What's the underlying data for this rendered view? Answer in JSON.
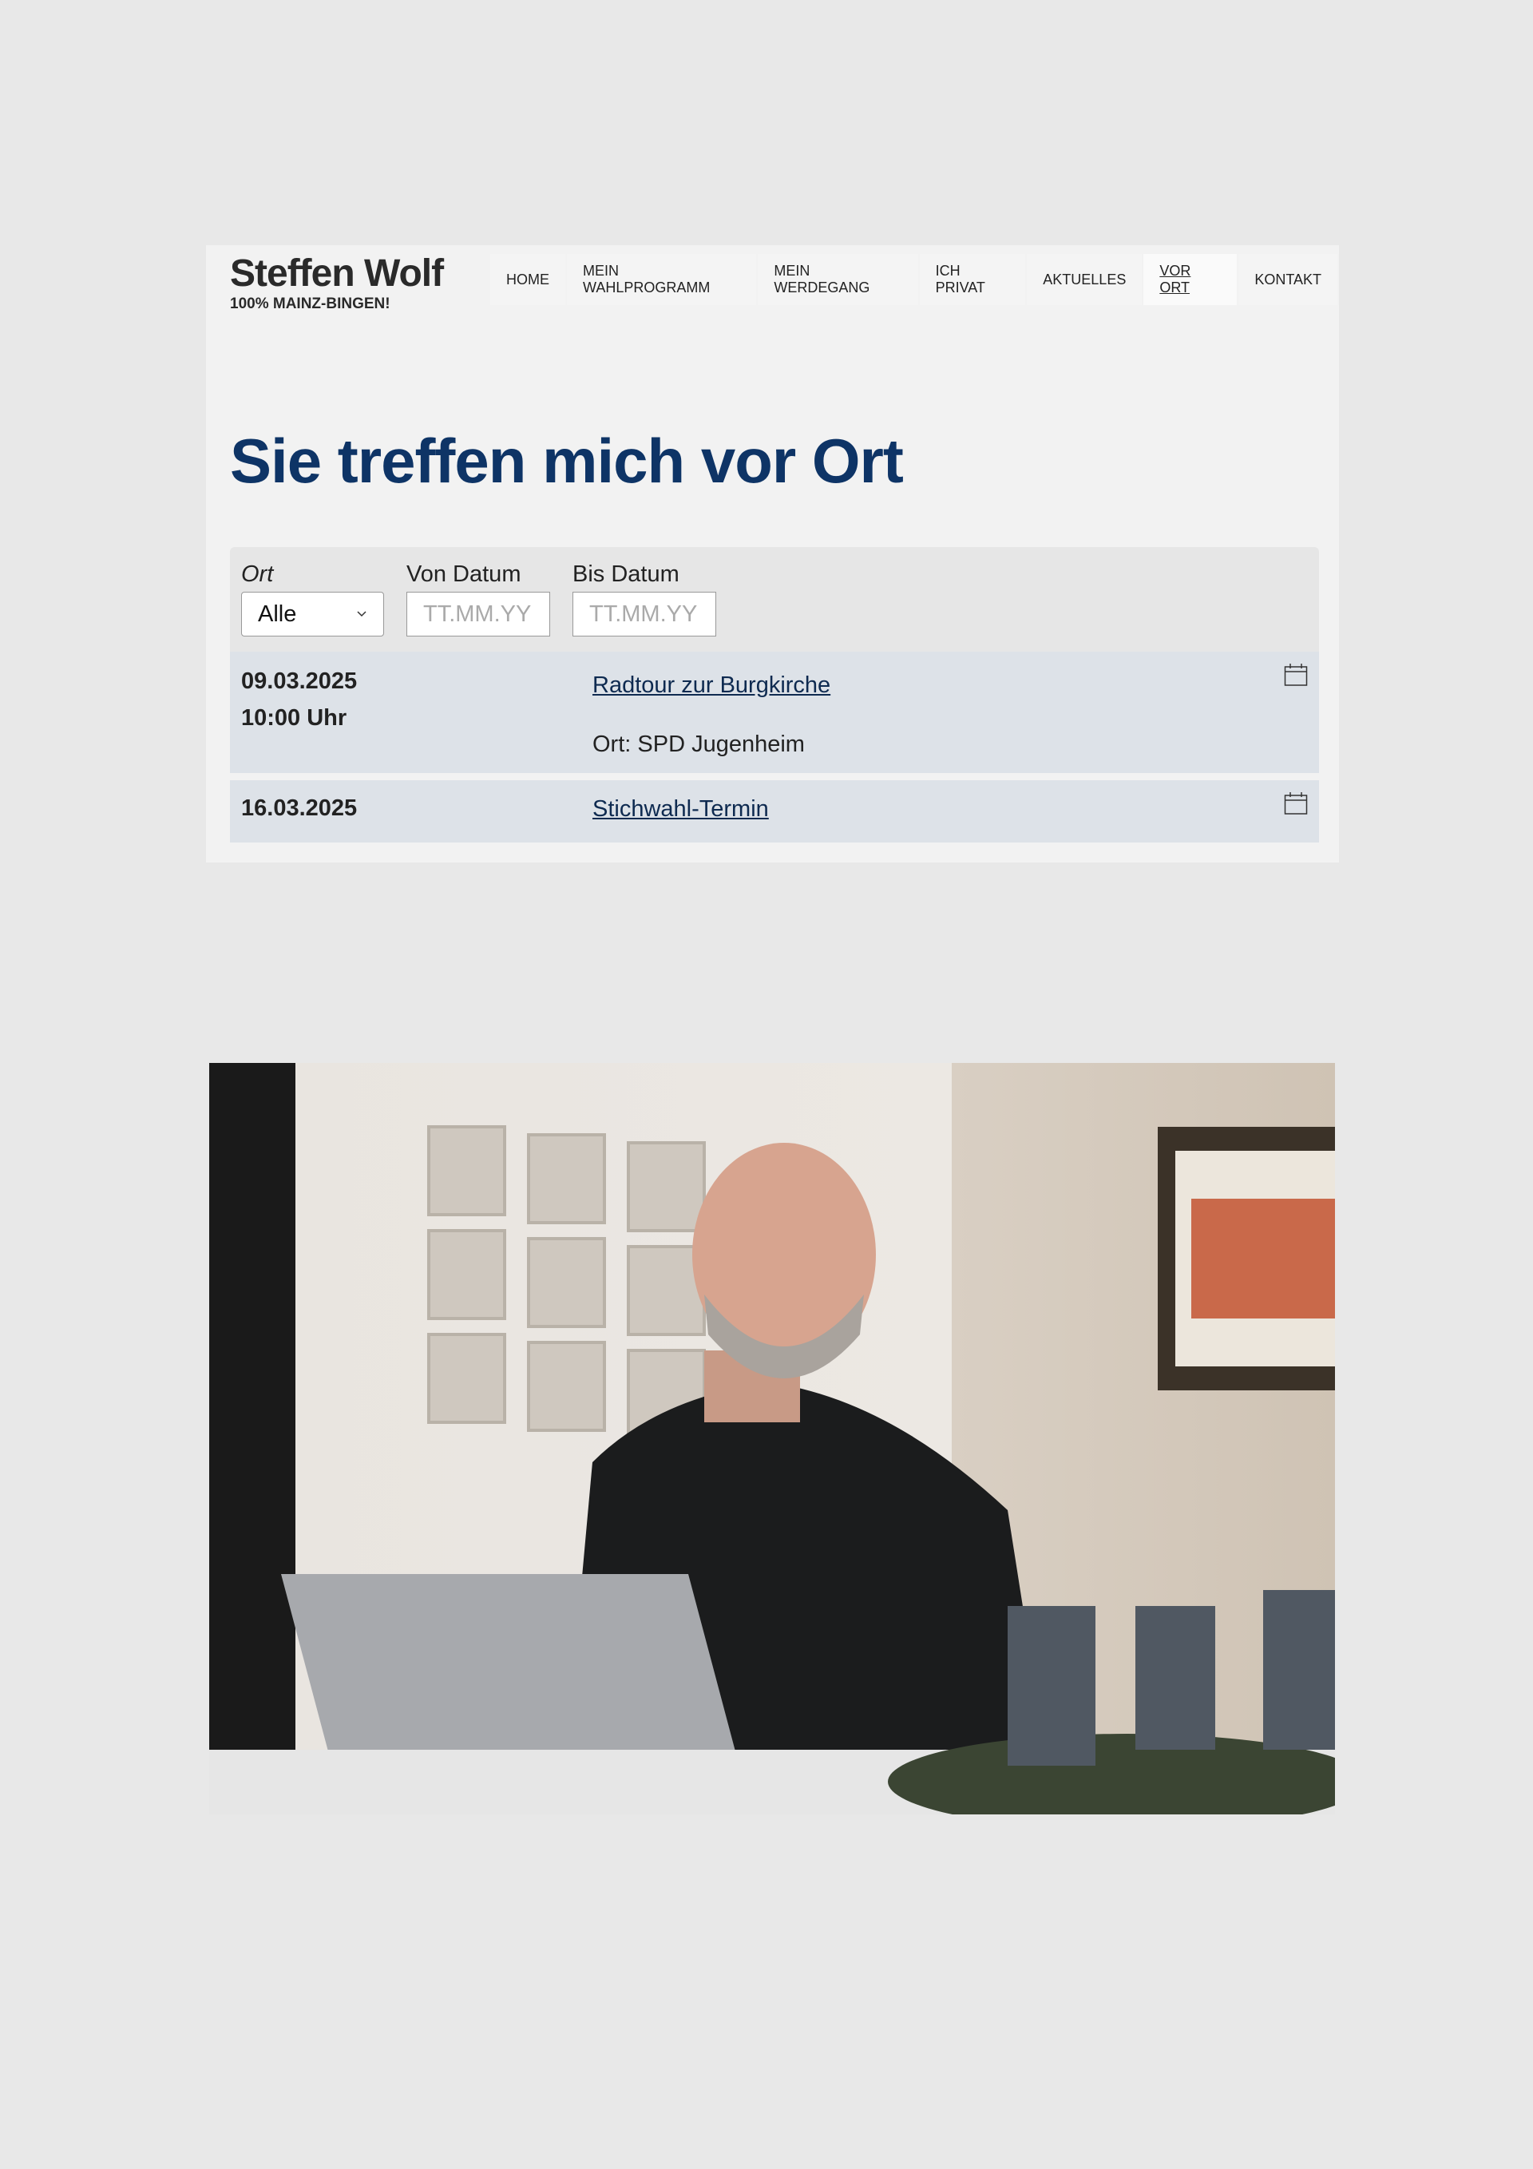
{
  "header": {
    "name": "Steffen Wolf",
    "tagline": "100% MAINZ-BINGEN!"
  },
  "nav": [
    {
      "label": "HOME"
    },
    {
      "label": "MEIN WAHLPROGRAMM"
    },
    {
      "label": "MEIN WERDEGANG"
    },
    {
      "label": "ICH PRIVAT"
    },
    {
      "label": "AKTUELLES"
    },
    {
      "label": "VOR ORT",
      "active": true
    },
    {
      "label": "KONTAKT"
    }
  ],
  "page_title": "Sie treffen mich vor Ort",
  "filter": {
    "ort_label": "Ort",
    "ort_value": "Alle",
    "von_label": "Von Datum",
    "von_placeholder": "TT.MM.YY",
    "bis_label": "Bis Datum",
    "bis_placeholder": "TT.MM.YY"
  },
  "events": [
    {
      "date": "09.03.2025",
      "time": "10:00 Uhr",
      "title": "Radtour zur Burgkirche",
      "location": "Ort: SPD Jugenheim"
    },
    {
      "date": "16.03.2025",
      "title": "Stichwahl-Termin"
    }
  ],
  "colors": {
    "title": "#0e3466",
    "event_bg": "#dde2e8"
  }
}
